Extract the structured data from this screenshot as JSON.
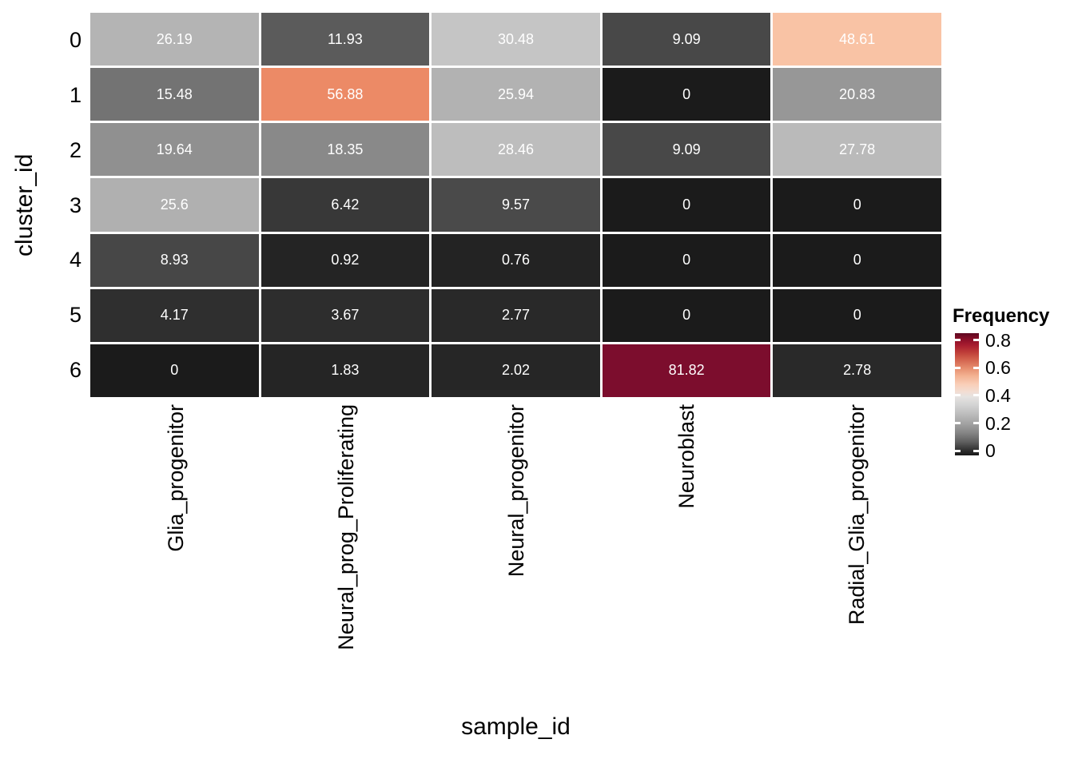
{
  "chart_data": {
    "type": "heatmap",
    "xlabel": "sample_id",
    "ylabel": "cluster_id",
    "x_categories": [
      "Glia_progenitor",
      "Neural_prog_Proliferating",
      "Neural_progenitor",
      "Neuroblast",
      "Radial_Glia_progenitor"
    ],
    "y_categories": [
      "0",
      "1",
      "2",
      "3",
      "4",
      "5",
      "6"
    ],
    "values": [
      [
        26.19,
        11.93,
        30.48,
        9.09,
        48.61
      ],
      [
        15.48,
        56.88,
        25.94,
        0,
        20.83
      ],
      [
        19.64,
        18.35,
        28.46,
        9.09,
        27.78
      ],
      [
        25.6,
        6.42,
        9.57,
        0,
        0
      ],
      [
        8.93,
        0.92,
        0.76,
        0,
        0
      ],
      [
        4.17,
        3.67,
        2.77,
        0,
        0
      ],
      [
        0,
        1.83,
        2.02,
        81.82,
        2.78
      ]
    ],
    "values_text": [
      [
        "26.19",
        "11.93",
        "30.48",
        "9.09",
        "48.61"
      ],
      [
        "15.48",
        "56.88",
        "25.94",
        "0",
        "20.83"
      ],
      [
        "19.64",
        "18.35",
        "28.46",
        "9.09",
        "27.78"
      ],
      [
        "25.6",
        "6.42",
        "9.57",
        "0",
        "0"
      ],
      [
        "8.93",
        "0.92",
        "0.76",
        "0",
        "0"
      ],
      [
        "4.17",
        "3.67",
        "2.77",
        "0",
        "0"
      ],
      [
        "0",
        "1.83",
        "2.02",
        "81.82",
        "2.78"
      ]
    ],
    "cell_colors": [
      [
        "#b4b4b4",
        "#5b5b5b",
        "#c5c5c5",
        "#484848",
        "#f9c3a5"
      ],
      [
        "#737373",
        "#ec8a66",
        "#b2b2b2",
        "#1b1b1b",
        "#979797"
      ],
      [
        "#909090",
        "#898989",
        "#bdbdbd",
        "#484848",
        "#bababa"
      ],
      [
        "#b0b0b0",
        "#383838",
        "#4a4a4a",
        "#1b1b1b",
        "#1b1b1b"
      ],
      [
        "#474747",
        "#242424",
        "#232323",
        "#1b1b1b",
        "#1b1b1b"
      ],
      [
        "#2f2f2f",
        "#2d2d2d",
        "#292929",
        "#1b1b1b",
        "#1b1b1b"
      ],
      [
        "#1b1b1b",
        "#252525",
        "#262626",
        "#7c0d2d",
        "#292929"
      ]
    ],
    "value_text_color": "#ffffff",
    "grid_line_color": "#ffffff",
    "legend": {
      "title": "Frequency",
      "ticks": [
        "0.8",
        "0.6",
        "0.4",
        "0.2",
        "0"
      ],
      "tick_values": [
        0.8,
        0.6,
        0.4,
        0.2,
        0
      ],
      "scale_max": 0.85,
      "color_low": "#1a1a1a",
      "color_mid": "#ffffff",
      "color_high": "#67001f",
      "position": "right"
    }
  }
}
